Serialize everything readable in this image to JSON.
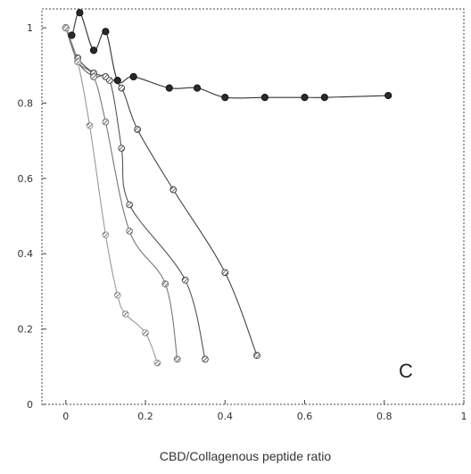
{
  "chart_data": {
    "type": "line",
    "title": "",
    "panel_label": "C",
    "xlabel": "CBD/Collagenous peptide ratio",
    "ylabel": "",
    "xlim": [
      -0.06,
      1.0
    ],
    "ylim": [
      0,
      1.05
    ],
    "x_ticks": [
      0,
      0.2,
      0.4,
      0.6,
      0.8,
      1
    ],
    "x_tick_labels": [
      "0",
      "0.2",
      "0.4",
      "0.6",
      "0.8",
      "1"
    ],
    "y_ticks": [
      0,
      0.2,
      0.4,
      0.6,
      0.8,
      1
    ],
    "y_tick_labels": [
      "0",
      "0.2",
      "0.4",
      "0.6",
      "0.8",
      "1"
    ],
    "grid": false,
    "series": [
      {
        "color": "#333333",
        "marker": "dark-circle",
        "x": [
          0,
          0.015,
          0.035,
          0.07,
          0.1,
          0.13,
          0.17,
          0.26,
          0.33,
          0.4,
          0.5,
          0.6,
          0.65,
          0.81
        ],
        "y": [
          1.0,
          0.98,
          1.04,
          0.94,
          0.99,
          0.86,
          0.87,
          0.84,
          0.84,
          0.815,
          0.815,
          0.815,
          0.815,
          0.82
        ]
      },
      {
        "color": "#444444",
        "marker": "hatched-circle",
        "x": [
          0,
          0.03,
          0.07,
          0.1,
          0.14,
          0.18,
          0.27,
          0.4,
          0.48
        ],
        "y": [
          1.0,
          0.92,
          0.88,
          0.87,
          0.84,
          0.73,
          0.57,
          0.35,
          0.13
        ]
      },
      {
        "color": "#555555",
        "marker": "hatched-circle",
        "x": [
          0,
          0.03,
          0.07,
          0.11,
          0.14,
          0.16,
          0.3,
          0.35
        ],
        "y": [
          1.0,
          0.91,
          0.87,
          0.86,
          0.68,
          0.53,
          0.33,
          0.12
        ]
      },
      {
        "color": "#777777",
        "marker": "hatched-circle",
        "x": [
          0,
          0.03,
          0.07,
          0.1,
          0.16,
          0.25,
          0.28
        ],
        "y": [
          1.0,
          0.91,
          0.87,
          0.75,
          0.46,
          0.32,
          0.12
        ]
      },
      {
        "color": "#999999",
        "marker": "hatched-circle",
        "x": [
          0,
          0.03,
          0.06,
          0.1,
          0.13,
          0.15,
          0.2,
          0.23
        ],
        "y": [
          1.0,
          0.91,
          0.74,
          0.45,
          0.29,
          0.24,
          0.19,
          0.11
        ]
      }
    ]
  }
}
